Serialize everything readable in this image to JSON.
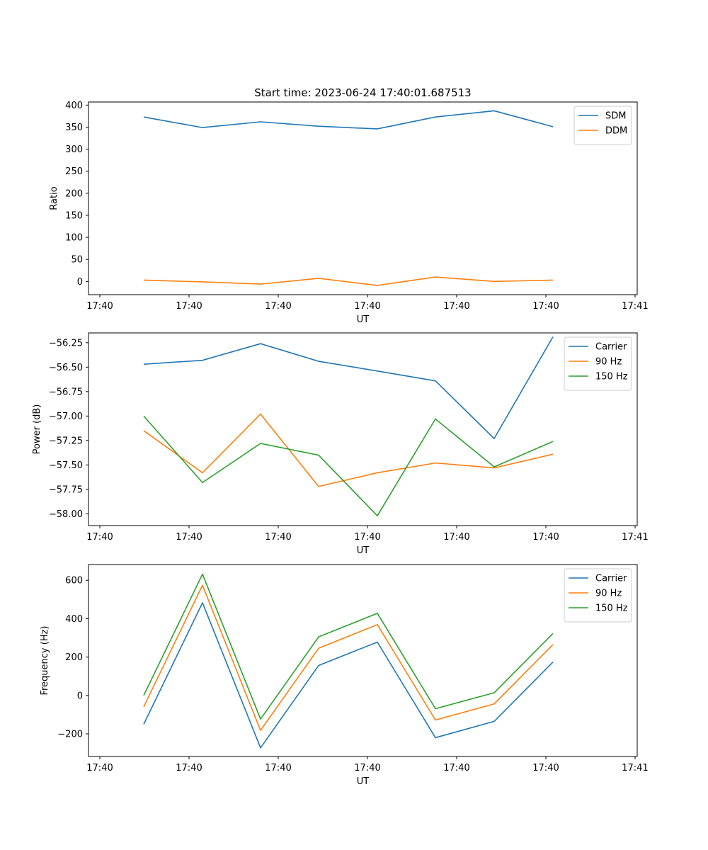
{
  "chart_data": [
    {
      "type": "line",
      "title": "Start time: 2023-06-24 17:40:01.687513",
      "xlabel": "UT",
      "ylabel": "Ratio",
      "x_ticks": [
        "17:40",
        "17:40",
        "17:40",
        "17:40",
        "17:40",
        "17:40",
        "17:40",
        "17:41"
      ],
      "y_ticks": [
        0,
        50,
        100,
        150,
        200,
        250,
        300,
        350,
        400
      ],
      "y_tick_labels": [
        "0",
        "50",
        "100",
        "150",
        "200",
        "250",
        "300",
        "350",
        "400"
      ],
      "ylim": [
        -30,
        407
      ],
      "legend": "top-right",
      "grid": false,
      "series": [
        {
          "name": "SDM",
          "color": "#1f77b4",
          "values": [
            373,
            349,
            362,
            352,
            346,
            373,
            387,
            351
          ]
        },
        {
          "name": "DDM",
          "color": "#ff7f0e",
          "values": [
            3,
            -1,
            -6,
            7,
            -9,
            10,
            0,
            3
          ]
        }
      ]
    },
    {
      "type": "line",
      "title": "",
      "xlabel": "UT",
      "ylabel": "Power (dB)",
      "x_ticks": [
        "17:40",
        "17:40",
        "17:40",
        "17:40",
        "17:40",
        "17:40",
        "17:40",
        "17:41"
      ],
      "y_ticks": [
        -58.0,
        -57.75,
        -57.5,
        -57.25,
        -57.0,
        -56.75,
        -56.5,
        -56.25
      ],
      "y_tick_labels": [
        "−58.00",
        "−57.75",
        "−57.50",
        "−57.25",
        "−57.00",
        "−56.75",
        "−56.50",
        "−56.25"
      ],
      "ylim": [
        -58.12,
        -56.15
      ],
      "legend": "top-right",
      "grid": false,
      "series": [
        {
          "name": "Carrier",
          "color": "#1f77b4",
          "values": [
            -56.47,
            -56.43,
            -56.26,
            -56.44,
            -56.54,
            -56.64,
            -57.23,
            -56.19
          ]
        },
        {
          "name": "90 Hz",
          "color": "#ff7f0e",
          "values": [
            -57.15,
            -57.58,
            -56.98,
            -57.72,
            -57.58,
            -57.48,
            -57.53,
            -57.39
          ]
        },
        {
          "name": "150 Hz",
          "color": "#2ca02c",
          "values": [
            -57.0,
            -57.68,
            -57.28,
            -57.4,
            -58.02,
            -57.03,
            -57.52,
            -57.26
          ]
        }
      ]
    },
    {
      "type": "line",
      "title": "",
      "xlabel": "UT",
      "ylabel": "Frequency (Hz)",
      "x_ticks": [
        "17:40",
        "17:40",
        "17:40",
        "17:40",
        "17:40",
        "17:40",
        "17:40",
        "17:41"
      ],
      "y_ticks": [
        -200,
        0,
        200,
        400,
        600
      ],
      "y_tick_labels": [
        "−200",
        "0",
        "200",
        "400",
        "600"
      ],
      "ylim": [
        -318,
        682
      ],
      "legend": "top-right",
      "grid": false,
      "series": [
        {
          "name": "Carrier",
          "color": "#1f77b4",
          "values": [
            -150,
            483,
            -273,
            156,
            278,
            -220,
            -135,
            174
          ]
        },
        {
          "name": "90 Hz",
          "color": "#ff7f0e",
          "values": [
            -59,
            574,
            -182,
            246,
            369,
            -128,
            -44,
            265
          ]
        },
        {
          "name": "150 Hz",
          "color": "#2ca02c",
          "values": [
            0,
            632,
            -123,
            305,
            428,
            -69,
            14,
            323
          ]
        }
      ]
    }
  ]
}
